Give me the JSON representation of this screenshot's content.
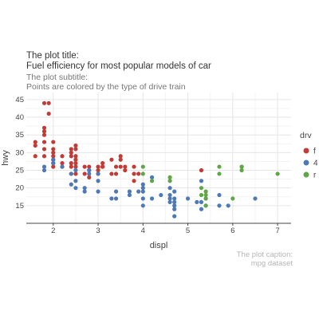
{
  "chart_data": {
    "type": "scatter",
    "title_lines": [
      "The plot title:",
      "Fuel efficiency for most popular models of car"
    ],
    "subtitle_lines": [
      "The plot subtitle:",
      "Points are colored by the type of drive train"
    ],
    "caption_lines": [
      "The plot caption:",
      "mpg dataset"
    ],
    "xlabel": "displ",
    "ylabel": "hwy",
    "xlim": [
      1.4,
      7.3
    ],
    "ylim": [
      10,
      47
    ],
    "xticks": [
      2,
      3,
      4,
      5,
      6,
      7
    ],
    "yticks": [
      15,
      20,
      25,
      30,
      35,
      40,
      45
    ],
    "grid": true,
    "legend": {
      "title": "drv",
      "position": "right"
    },
    "series": [
      {
        "name": "f",
        "color": "#C23B35",
        "points": [
          [
            1.6,
            33
          ],
          [
            1.6,
            32
          ],
          [
            1.6,
            29
          ],
          [
            1.8,
            29
          ],
          [
            1.8,
            31
          ],
          [
            1.8,
            33
          ],
          [
            1.8,
            35
          ],
          [
            1.8,
            36
          ],
          [
            1.8,
            37
          ],
          [
            1.8,
            44
          ],
          [
            1.9,
            41
          ],
          [
            1.9,
            44
          ],
          [
            2.0,
            29
          ],
          [
            2.0,
            28
          ],
          [
            2.0,
            30
          ],
          [
            2.0,
            26
          ],
          [
            2.0,
            27
          ],
          [
            2.0,
            31
          ],
          [
            2.0,
            33
          ],
          [
            2.2,
            27
          ],
          [
            2.2,
            29
          ],
          [
            2.2,
            26
          ],
          [
            2.4,
            27
          ],
          [
            2.4,
            30
          ],
          [
            2.4,
            31
          ],
          [
            2.4,
            26
          ],
          [
            2.4,
            29
          ],
          [
            2.4,
            24
          ],
          [
            2.5,
            29
          ],
          [
            2.5,
            28
          ],
          [
            2.5,
            27
          ],
          [
            2.5,
            26
          ],
          [
            2.5,
            24
          ],
          [
            2.5,
            32
          ],
          [
            2.5,
            31
          ],
          [
            2.7,
            24
          ],
          [
            2.7,
            26
          ],
          [
            2.8,
            25
          ],
          [
            2.8,
            26
          ],
          [
            2.8,
            23
          ],
          [
            3.0,
            26
          ],
          [
            3.0,
            24
          ],
          [
            3.0,
            25
          ],
          [
            3.1,
            26
          ],
          [
            3.1,
            27
          ],
          [
            3.1,
            26
          ],
          [
            3.3,
            24
          ],
          [
            3.3,
            28
          ],
          [
            3.4,
            24
          ],
          [
            3.4,
            26
          ],
          [
            3.5,
            29
          ],
          [
            3.5,
            28
          ],
          [
            3.5,
            26
          ],
          [
            3.6,
            26
          ],
          [
            3.6,
            25
          ],
          [
            3.8,
            26
          ],
          [
            3.8,
            24
          ],
          [
            3.8,
            22
          ],
          [
            3.9,
            24
          ],
          [
            5.3,
            25
          ]
        ]
      },
      {
        "name": "4",
        "color": "#4E79B6",
        "points": [
          [
            1.8,
            26
          ],
          [
            1.8,
            25
          ],
          [
            2.0,
            28
          ],
          [
            2.0,
            27
          ],
          [
            2.2,
            26
          ],
          [
            2.4,
            24
          ],
          [
            2.4,
            21
          ],
          [
            2.5,
            25
          ],
          [
            2.5,
            20
          ],
          [
            2.5,
            22
          ],
          [
            2.7,
            20
          ],
          [
            2.7,
            19
          ],
          [
            2.8,
            25
          ],
          [
            2.8,
            24
          ],
          [
            3.0,
            24
          ],
          [
            3.0,
            22
          ],
          [
            3.0,
            19
          ],
          [
            3.3,
            17
          ],
          [
            3.4,
            19
          ],
          [
            3.4,
            17
          ],
          [
            3.7,
            19
          ],
          [
            3.7,
            18
          ],
          [
            3.9,
            19
          ],
          [
            4.0,
            17
          ],
          [
            4.0,
            20
          ],
          [
            4.0,
            19
          ],
          [
            4.0,
            15
          ],
          [
            4.0,
            21
          ],
          [
            4.2,
            23
          ],
          [
            4.2,
            17
          ],
          [
            4.4,
            18
          ],
          [
            4.6,
            17
          ],
          [
            4.6,
            16
          ],
          [
            4.6,
            20
          ],
          [
            4.6,
            18
          ],
          [
            4.7,
            16
          ],
          [
            4.7,
            17
          ],
          [
            4.7,
            19
          ],
          [
            4.7,
            14
          ],
          [
            4.7,
            12
          ],
          [
            4.7,
            15
          ],
          [
            5.0,
            17
          ],
          [
            5.2,
            16
          ],
          [
            5.3,
            16
          ],
          [
            5.3,
            14
          ],
          [
            5.3,
            22
          ],
          [
            5.4,
            17
          ],
          [
            5.4,
            15
          ],
          [
            5.7,
            18
          ],
          [
            5.7,
            15
          ],
          [
            5.9,
            15
          ],
          [
            6.5,
            17
          ]
        ]
      },
      {
        "name": "r",
        "color": "#5FA646",
        "points": [
          [
            4.0,
            24
          ],
          [
            4.0,
            26
          ],
          [
            4.2,
            22
          ],
          [
            4.6,
            22
          ],
          [
            4.6,
            23
          ],
          [
            5.3,
            20
          ],
          [
            5.4,
            19
          ],
          [
            5.4,
            18
          ],
          [
            5.4,
            17
          ],
          [
            5.4,
            15
          ],
          [
            5.7,
            24
          ],
          [
            5.7,
            26
          ],
          [
            6.0,
            17
          ],
          [
            6.2,
            25
          ],
          [
            6.2,
            26
          ],
          [
            6.2,
            26
          ],
          [
            7.0,
            24
          ],
          [
            5.3,
            18
          ]
        ]
      }
    ]
  }
}
